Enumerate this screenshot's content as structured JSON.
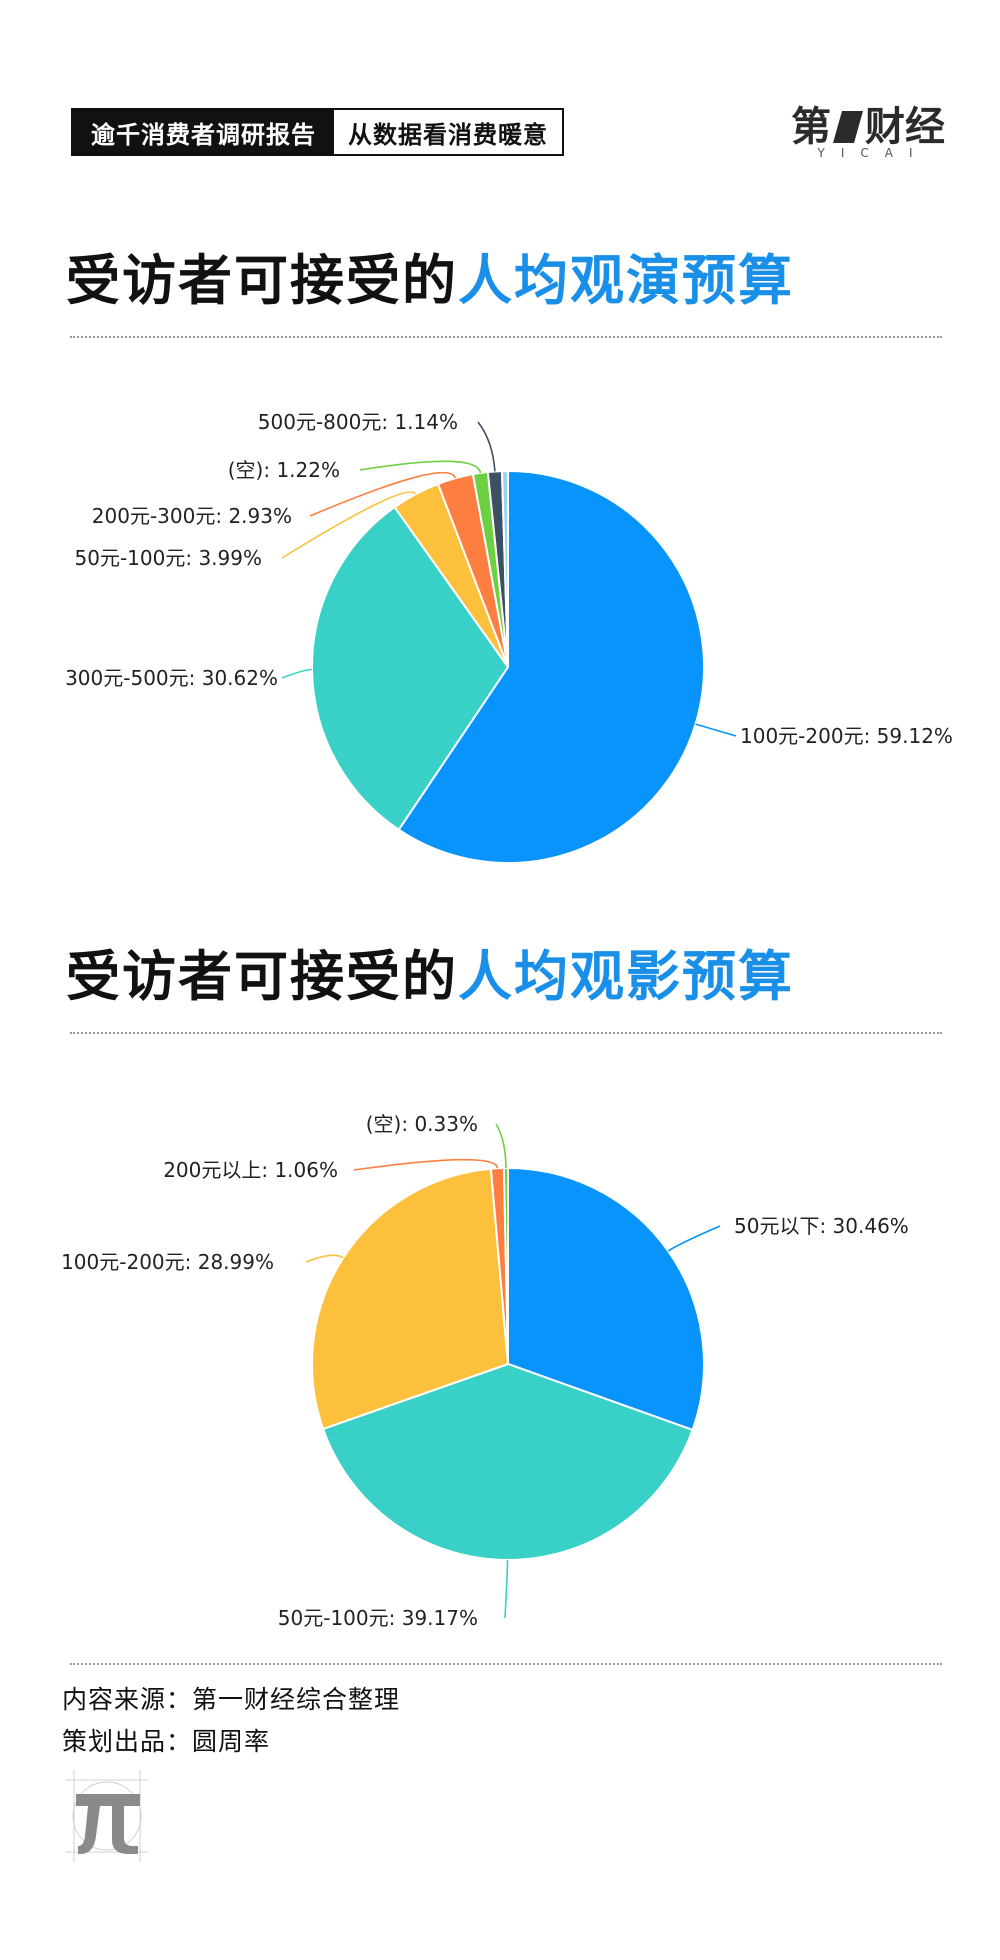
{
  "header": {
    "tag_left": "逾千消费者调研报告",
    "tag_right": "从数据看消费暖意"
  },
  "logo": {
    "left_char": "第",
    "right_chars": "财经",
    "sub": "YICAI"
  },
  "section1": {
    "title_plain": "受访者可接受的",
    "title_highlight": "人均观演预算"
  },
  "section2": {
    "title_plain": "受访者可接受的",
    "title_highlight": "人均观影预算"
  },
  "chart_data": [
    {
      "type": "pie",
      "slices": [
        {
          "label": "100元-200元",
          "value": 59.12,
          "display": "100元-200元: 59.12%",
          "color": "#0894fa"
        },
        {
          "label": "300元-500元",
          "value": 30.62,
          "display": "300元-500元: 30.62%",
          "color": "#39d0c8"
        },
        {
          "label": "50元-100元",
          "value": 3.99,
          "display": "50元-100元: 3.99%",
          "color": "#fdc03d"
        },
        {
          "label": "200元-300元",
          "value": 2.93,
          "display": "200元-300元: 2.93%",
          "color": "#fe7e41"
        },
        {
          "label": "(空)",
          "value": 1.22,
          "display": "(空): 1.22%",
          "color": "#6dd042"
        },
        {
          "label": "500元-800元",
          "value": 1.14,
          "display": "500元-800元: 1.14%",
          "color": "#3d4f62"
        },
        {
          "label": "",
          "value": 0.49,
          "display": "",
          "color": "#9ad4f2"
        }
      ]
    },
    {
      "type": "pie",
      "slices": [
        {
          "label": "50元以下",
          "value": 30.46,
          "display": "50元以下: 30.46%",
          "color": "#0894fa"
        },
        {
          "label": "50元-100元",
          "value": 39.17,
          "display": "50元-100元: 39.17%",
          "color": "#39d0c8"
        },
        {
          "label": "100元-200元",
          "value": 28.99,
          "display": "100元-200元: 28.99%",
          "color": "#fdc03d"
        },
        {
          "label": "200元以上",
          "value": 1.06,
          "display": "200元以上: 1.06%",
          "color": "#fe7e41"
        },
        {
          "label": "(空)",
          "value": 0.33,
          "display": "(空): 0.33%",
          "color": "#6dd042"
        }
      ]
    }
  ],
  "footer": {
    "source": "内容来源：第一财经综合整理",
    "producer": "策划出品：圆周率"
  }
}
